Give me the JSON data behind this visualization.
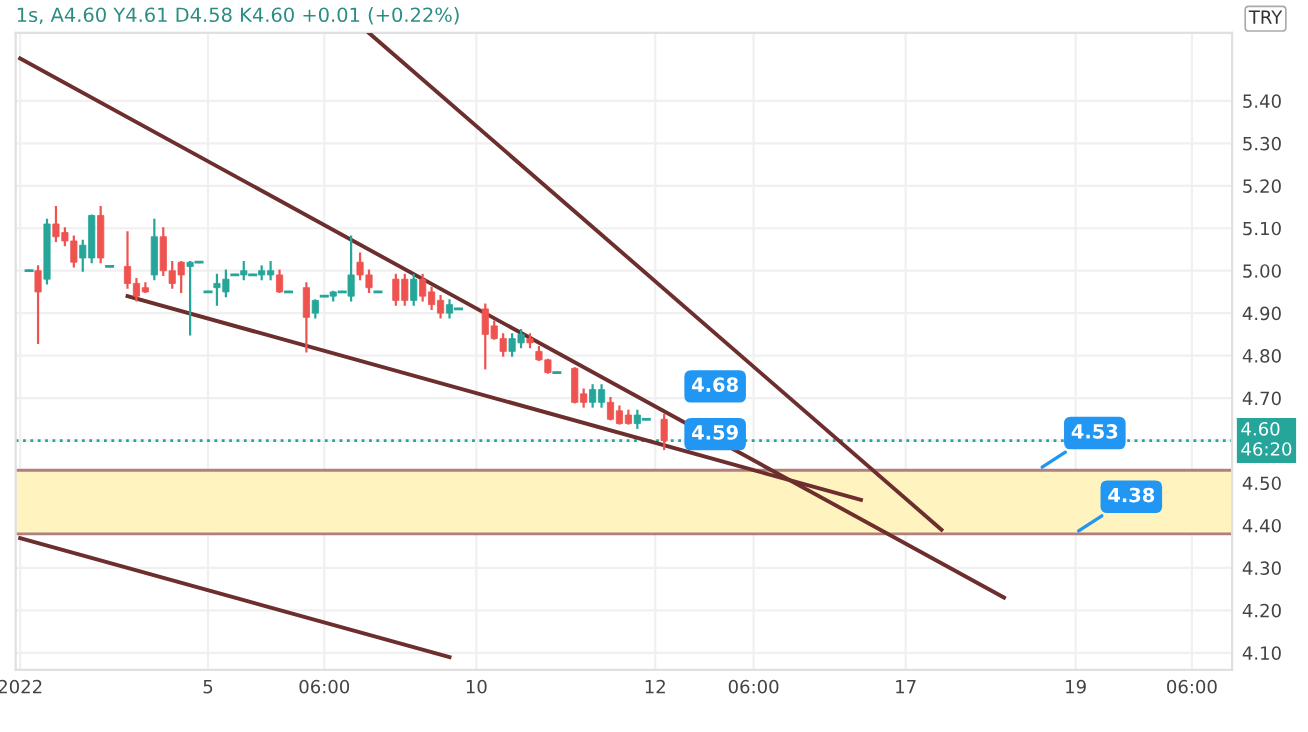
{
  "chart_data": {
    "type": "candlestick",
    "title": "1s, A4.60 Y4.61 D4.58 K4.60 +0.01 (+0.22%)",
    "ylabel": "TRY",
    "categories": [
      "2022",
      null,
      null,
      null,
      null,
      null,
      null,
      null,
      null,
      null,
      null,
      null,
      null,
      null,
      null,
      null,
      null,
      null,
      null,
      null,
      null,
      "5",
      null,
      null,
      null,
      null,
      null,
      null,
      null,
      null,
      null,
      null,
      null,
      null,
      "06:00",
      null,
      null,
      null,
      null,
      null,
      null,
      null,
      null,
      null,
      null,
      null,
      null,
      null,
      null,
      null,
      null,
      "10",
      null,
      null,
      null,
      null,
      null,
      null,
      null,
      null,
      null,
      null,
      null,
      null,
      null,
      null,
      null,
      null,
      null,
      null,
      null,
      "12",
      null,
      null,
      null,
      null,
      null,
      null,
      null,
      null,
      null,
      null,
      "06:00",
      null,
      null,
      null,
      null,
      null,
      null,
      null,
      null,
      null,
      null,
      null,
      null,
      null,
      null,
      null,
      null,
      "17",
      null,
      null,
      null,
      null,
      null,
      null,
      null,
      null,
      null,
      null,
      null,
      null,
      null,
      null,
      null,
      null,
      null,
      null,
      "19",
      null,
      null,
      null,
      null,
      null,
      null,
      null,
      null,
      null,
      null,
      null,
      null,
      "06:00",
      null,
      null,
      null,
      null
    ],
    "ohlc": [
      null,
      [
        5.0,
        5.0,
        5.0,
        5.0
      ],
      [
        5.0,
        5.01,
        4.83,
        4.95
      ],
      [
        4.98,
        5.12,
        4.97,
        5.11
      ],
      [
        5.11,
        5.15,
        5.07,
        5.08
      ],
      [
        5.09,
        5.1,
        5.06,
        5.07
      ],
      [
        5.07,
        5.08,
        5.01,
        5.02
      ],
      [
        5.03,
        5.07,
        5.0,
        5.06
      ],
      [
        5.03,
        5.13,
        5.02,
        5.13
      ],
      [
        5.13,
        5.15,
        5.02,
        5.03
      ],
      [
        5.01,
        5.01,
        5.01,
        5.01
      ],
      null,
      [
        5.01,
        5.09,
        4.96,
        4.97
      ],
      [
        4.97,
        4.98,
        4.93,
        4.94
      ],
      [
        4.96,
        4.97,
        4.95,
        4.95
      ],
      [
        4.99,
        5.12,
        4.98,
        5.08
      ],
      [
        5.08,
        5.1,
        4.99,
        5.0
      ],
      [
        5.0,
        5.02,
        4.96,
        4.97
      ],
      [
        5.02,
        5.02,
        4.95,
        4.99
      ],
      [
        5.01,
        5.02,
        4.85,
        5.02
      ],
      [
        5.02,
        5.02,
        5.02,
        5.02
      ],
      [
        4.95,
        4.95,
        4.95,
        4.95
      ],
      [
        4.96,
        4.99,
        4.92,
        4.97
      ],
      [
        4.95,
        5.0,
        4.94,
        4.98
      ],
      [
        4.99,
        4.99,
        4.99,
        4.99
      ],
      [
        4.99,
        5.02,
        4.98,
        5.0
      ],
      [
        4.99,
        4.99,
        4.99,
        4.99
      ],
      [
        4.99,
        5.01,
        4.98,
        5.0
      ],
      [
        4.99,
        5.02,
        4.98,
        5.0
      ],
      [
        4.99,
        5.0,
        4.95,
        4.95
      ],
      [
        4.95,
        4.95,
        4.95,
        4.95
      ],
      null,
      [
        4.96,
        4.97,
        4.81,
        4.89
      ],
      [
        4.9,
        4.93,
        4.89,
        4.93
      ],
      [
        4.94,
        4.94,
        4.94,
        4.94
      ],
      [
        4.94,
        4.95,
        4.93,
        4.95
      ],
      [
        4.95,
        4.95,
        4.95,
        4.95
      ],
      [
        4.94,
        5.08,
        4.93,
        4.99
      ],
      [
        5.02,
        5.04,
        4.98,
        4.99
      ],
      [
        4.99,
        5.0,
        4.95,
        4.96
      ],
      [
        4.95,
        4.95,
        4.95,
        4.95
      ],
      null,
      [
        4.98,
        4.99,
        4.92,
        4.93
      ],
      [
        4.98,
        4.99,
        4.92,
        4.93
      ],
      [
        4.93,
        4.99,
        4.92,
        4.98
      ],
      [
        4.98,
        4.99,
        4.93,
        4.94
      ],
      [
        4.95,
        4.96,
        4.91,
        4.92
      ],
      [
        4.93,
        4.94,
        4.89,
        4.9
      ],
      [
        4.9,
        4.93,
        4.89,
        4.92
      ],
      [
        4.91,
        4.91,
        4.91,
        4.91
      ],
      null,
      null,
      [
        4.91,
        4.92,
        4.77,
        4.85
      ],
      [
        4.87,
        4.88,
        4.84,
        4.84
      ],
      [
        4.84,
        4.85,
        4.8,
        4.81
      ],
      [
        4.81,
        4.85,
        4.8,
        4.84
      ],
      [
        4.83,
        4.86,
        4.82,
        4.85
      ],
      [
        4.84,
        4.85,
        4.82,
        4.83
      ],
      [
        4.81,
        4.82,
        4.79,
        4.79
      ],
      [
        4.79,
        4.79,
        4.76,
        4.76
      ],
      [
        4.76,
        4.76,
        4.76,
        4.76
      ],
      null,
      [
        4.77,
        4.77,
        4.69,
        4.69
      ],
      [
        4.71,
        4.72,
        4.68,
        4.69
      ],
      [
        4.69,
        4.73,
        4.68,
        4.72
      ],
      [
        4.69,
        4.73,
        4.68,
        4.72
      ],
      [
        4.69,
        4.7,
        4.65,
        4.65
      ],
      [
        4.67,
        4.68,
        4.64,
        4.64
      ],
      [
        4.66,
        4.67,
        4.64,
        4.64
      ],
      [
        4.64,
        4.67,
        4.63,
        4.66
      ],
      [
        4.65,
        4.65,
        4.65,
        4.65
      ],
      null,
      [
        4.65,
        4.66,
        4.58,
        4.6
      ],
      null,
      null,
      null,
      null,
      null,
      null,
      null,
      null,
      null,
      null,
      null,
      null,
      null,
      null,
      null,
      null,
      null,
      null,
      null,
      null,
      null,
      null,
      null,
      null,
      null,
      null,
      null,
      null,
      null,
      null,
      null,
      null,
      null,
      null,
      null,
      null,
      null,
      null,
      null,
      null,
      null,
      null,
      null,
      null,
      null,
      null,
      null,
      null,
      null,
      null,
      null,
      null,
      null,
      null,
      null,
      null,
      null,
      null,
      null,
      null,
      null,
      null,
      null
    ],
    "colors": [
      null,
      "#26a69a",
      "#ef5350",
      "#26a69a",
      "#ef5350",
      "#ef5350",
      "#ef5350",
      "#26a69a",
      "#26a69a",
      "#ef5350",
      "#26a69a",
      null,
      "#ef5350",
      "#ef5350",
      "#ef5350",
      "#26a69a",
      "#ef5350",
      "#ef5350",
      "#ef5350",
      "#26a69a",
      "#26a69a",
      "#26a69a",
      "#26a69a",
      "#26a69a",
      "#26a69a",
      "#26a69a",
      "#26a69a",
      "#26a69a",
      "#26a69a",
      "#ef5350",
      "#26a69a",
      null,
      "#ef5350",
      "#26a69a",
      "#26a69a",
      "#26a69a",
      "#26a69a",
      "#26a69a",
      "#ef5350",
      "#ef5350",
      "#26a69a",
      null,
      "#ef5350",
      "#ef5350",
      "#26a69a",
      "#ef5350",
      "#ef5350",
      "#ef5350",
      "#26a69a",
      "#26a69a",
      null,
      null,
      "#ef5350",
      "#ef5350",
      "#ef5350",
      "#26a69a",
      "#26a69a",
      "#ef5350",
      "#ef5350",
      "#ef5350",
      "#26a69a",
      null,
      "#ef5350",
      "#ef5350",
      "#26a69a",
      "#26a69a",
      "#ef5350",
      "#ef5350",
      "#ef5350",
      "#26a69a",
      "#26a69a",
      null,
      "#ef5350",
      null,
      null,
      null,
      null,
      null,
      null,
      null,
      null,
      null,
      null,
      null,
      null,
      null,
      null,
      null,
      null,
      null,
      null,
      null,
      null,
      null,
      null,
      null,
      null,
      null,
      null,
      null,
      null,
      null,
      null,
      null,
      null,
      null,
      null,
      null,
      null,
      null,
      null,
      null,
      null,
      null,
      null,
      null,
      null,
      null,
      null,
      null,
      null,
      null,
      null,
      null,
      null,
      null,
      null,
      null,
      null,
      null,
      null,
      null,
      null,
      null,
      null,
      null
    ],
    "series": [
      {
        "type": "line",
        "color": "#6d2e2e",
        "values": [
          5.5,
          null,
          null,
          null,
          null,
          null,
          null,
          null,
          null,
          null,
          null,
          null,
          null,
          null,
          null,
          null,
          null,
          null,
          null,
          null,
          null,
          null,
          null,
          null,
          null,
          null,
          null,
          null,
          null,
          null,
          null,
          null,
          null,
          null,
          null,
          null,
          null,
          null,
          null,
          null,
          null,
          null,
          null,
          null,
          null,
          null,
          null,
          null,
          null,
          null,
          null,
          null,
          null,
          null,
          null,
          null,
          null,
          null,
          null,
          null,
          null,
          null,
          null,
          null,
          null,
          null,
          null,
          null,
          null,
          null,
          null,
          null,
          null,
          null,
          null,
          null,
          null,
          null,
          null,
          null,
          null,
          null,
          null,
          null,
          null,
          null,
          null,
          null,
          null,
          null,
          null,
          null,
          null,
          null,
          null,
          null,
          null,
          null,
          null,
          null,
          null,
          null,
          null,
          null,
          null,
          null,
          null,
          null,
          null,
          null,
          4.23,
          null,
          null,
          null,
          null,
          null,
          null,
          null,
          null,
          null,
          null,
          null,
          null,
          null,
          null,
          null,
          null,
          null,
          null,
          null,
          null,
          null,
          null,
          null,
          null,
          null
        ]
      },
      {
        "type": "line",
        "color": "#6d2e2e",
        "values": [
          null,
          null,
          null,
          null,
          null,
          null,
          null,
          null,
          null,
          null,
          null,
          null,
          null,
          null,
          null,
          null,
          null,
          null,
          null,
          null,
          null,
          null,
          null,
          null,
          null,
          null,
          null,
          null,
          null,
          null,
          null,
          null,
          null,
          null,
          null,
          null,
          null,
          null,
          null,
          5.56,
          null,
          null,
          null,
          null,
          null,
          null,
          null,
          null,
          null,
          null,
          null,
          null,
          null,
          null,
          null,
          null,
          null,
          null,
          null,
          null,
          null,
          null,
          null,
          null,
          null,
          null,
          null,
          null,
          null,
          null,
          null,
          null,
          null,
          null,
          null,
          null,
          null,
          null,
          null,
          null,
          null,
          null,
          null,
          null,
          null,
          null,
          null,
          null,
          null,
          null,
          null,
          null,
          null,
          null,
          null,
          null,
          null,
          null,
          null,
          null,
          null,
          null,
          null,
          4.39,
          null,
          null,
          null,
          null,
          null,
          null,
          null,
          null,
          null,
          null,
          null,
          null,
          null,
          null,
          null,
          null,
          null,
          null,
          null,
          null,
          null,
          null,
          null,
          null,
          null,
          null,
          null,
          null,
          null,
          null,
          null,
          null
        ]
      },
      {
        "type": "line",
        "color": "#6d2e2e",
        "values": [
          null,
          null,
          null,
          null,
          null,
          null,
          null,
          null,
          null,
          null,
          null,
          null,
          4.94,
          null,
          null,
          null,
          null,
          null,
          null,
          null,
          null,
          null,
          null,
          null,
          null,
          null,
          null,
          null,
          null,
          null,
          null,
          null,
          null,
          null,
          null,
          null,
          null,
          null,
          null,
          null,
          null,
          null,
          null,
          null,
          null,
          null,
          null,
          null,
          null,
          null,
          null,
          null,
          null,
          null,
          null,
          null,
          null,
          null,
          null,
          null,
          null,
          null,
          null,
          null,
          null,
          null,
          null,
          null,
          null,
          null,
          null,
          null,
          null,
          null,
          null,
          null,
          null,
          null,
          null,
          null,
          null,
          null,
          null,
          null,
          null,
          null,
          null,
          null,
          null,
          null,
          null,
          null,
          null,
          null,
          4.46,
          null,
          null,
          null,
          null,
          null,
          null,
          null,
          null,
          null,
          null,
          null,
          null,
          null,
          null,
          null,
          null,
          null,
          null,
          null,
          null,
          null,
          null,
          null,
          null,
          null,
          null,
          null,
          null,
          null,
          null,
          null,
          null,
          null,
          null,
          null,
          null,
          null,
          null,
          null,
          null,
          null
        ]
      },
      {
        "type": "line",
        "color": "#6d2e2e",
        "values": [
          4.37,
          null,
          null,
          null,
          null,
          null,
          null,
          null,
          null,
          null,
          null,
          null,
          null,
          null,
          null,
          null,
          null,
          null,
          null,
          null,
          null,
          null,
          null,
          null,
          null,
          null,
          null,
          null,
          null,
          null,
          null,
          null,
          null,
          null,
          null,
          null,
          null,
          null,
          null,
          null,
          null,
          null,
          null,
          null,
          null,
          null,
          null,
          null,
          4.09,
          null,
          null,
          null,
          null,
          null,
          null,
          null,
          null,
          null,
          null,
          null,
          null,
          null,
          null,
          null,
          null,
          null,
          null,
          null,
          null,
          null,
          null,
          null,
          null,
          null,
          null,
          null,
          null,
          null,
          null,
          null,
          null,
          null,
          null,
          null,
          null,
          null,
          null,
          null,
          null,
          null,
          null,
          null,
          null,
          null,
          null,
          null,
          null,
          null,
          null,
          null,
          null,
          null,
          null,
          null,
          null,
          null,
          null,
          null,
          null,
          null,
          null,
          null,
          null,
          null,
          null,
          null,
          null,
          null,
          null,
          null,
          null,
          null,
          null,
          null,
          null,
          null,
          null,
          null,
          null,
          null,
          null,
          null,
          null,
          null,
          null,
          null
        ]
      }
    ],
    "bands": [
      {
        "axis": "y",
        "from": 4.38,
        "to": 4.53,
        "color": "#fff3c0"
      }
    ],
    "ref_lines": [
      {
        "axis": "y",
        "value": 4.53,
        "color": "#b08080",
        "line_style": "solid",
        "label": "4.53"
      },
      {
        "axis": "y",
        "value": 4.38,
        "color": "#b08080",
        "line_style": "solid",
        "label": "4.38"
      },
      {
        "axis": "y",
        "value": 4.6,
        "color": "#26a69a",
        "line_style": "dotted",
        "label": "4.60\n46:20"
      }
    ],
    "annotations": [
      "4.68",
      "4.59"
    ],
    "ylim": [
      4.06,
      5.56
    ],
    "yticks": [
      {
        "value": 4.1,
        "label": "4.10"
      },
      {
        "value": 4.2,
        "label": "4.20"
      },
      {
        "value": 4.3,
        "label": "4.30"
      },
      {
        "value": 4.4,
        "label": "4.40"
      },
      {
        "value": 4.5,
        "label": "4.50"
      },
      {
        "value": 4.6,
        "label": null
      },
      {
        "value": 4.7,
        "label": "4.70"
      },
      {
        "value": 4.8,
        "label": "4.80"
      },
      {
        "value": 4.9,
        "label": "4.90"
      },
      {
        "value": 5.0,
        "label": "5.00"
      },
      {
        "value": 5.1,
        "label": "5.10"
      },
      {
        "value": 5.2,
        "label": "5.20"
      },
      {
        "value": 5.3,
        "label": "5.30"
      },
      {
        "value": 5.4,
        "label": "5.40"
      }
    ],
    "grid": true,
    "legend": false
  }
}
